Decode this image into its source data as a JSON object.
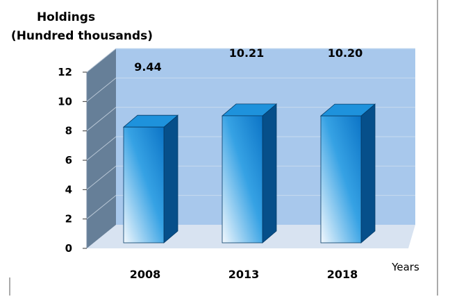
{
  "chart_data": {
    "type": "bar",
    "ylabel_line1": "Holdings",
    "ylabel_line2": "(Hundred thousands)",
    "xlabel": "Years",
    "categories": [
      "2008",
      "2013",
      "2018"
    ],
    "values": [
      9.44,
      10.21,
      10.2
    ],
    "value_labels": [
      "9.44",
      "10.21",
      "10.20"
    ],
    "y_ticks": [
      "0",
      "2",
      "4",
      "6",
      "8",
      "10",
      "12"
    ],
    "ylim": [
      0,
      12
    ],
    "grid": true,
    "legend": "none",
    "colors": {
      "wall_back": "#a8c8ec",
      "wall_side": "#667f98",
      "floor": "#8fb0d6",
      "bar_front_dark": "#0c74c6",
      "bar_front_light": "#f2f8fd",
      "bar_top": "#1e92dc",
      "bar_side": "#064f8a"
    }
  }
}
